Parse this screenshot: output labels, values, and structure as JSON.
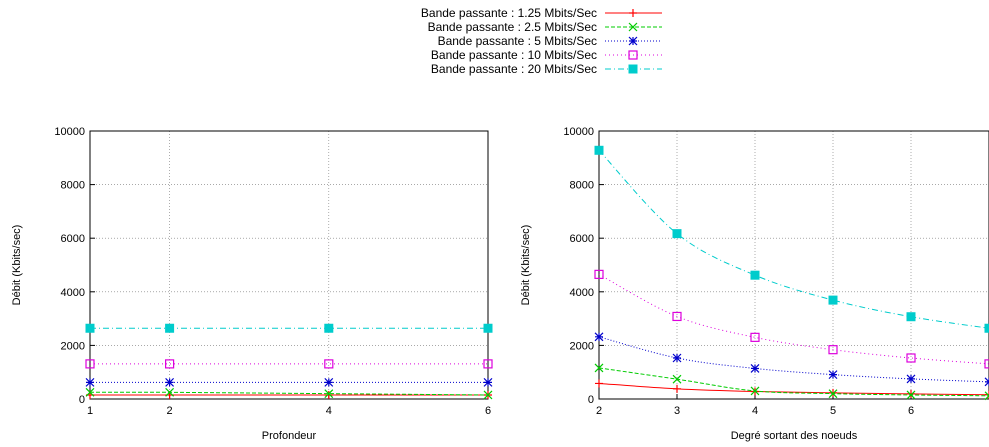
{
  "legend": {
    "placement": "top-center",
    "entries": [
      {
        "label": "Bande passante : 1.25 Mbits/Sec",
        "color": "#ff0000",
        "marker": "plus",
        "dash": ""
      },
      {
        "label": "Bande passante : 2.5 Mbits/Sec",
        "color": "#00cc00",
        "marker": "cross",
        "dash": "4,2"
      },
      {
        "label": "Bande passante : 5 Mbits/Sec",
        "color": "#0000cc",
        "marker": "star",
        "dash": "1,2"
      },
      {
        "label": "Bande passante : 10 Mbits/Sec",
        "color": "#dd00dd",
        "marker": "open-square",
        "dash": "1,3"
      },
      {
        "label": "Bande passante : 20 Mbits/Sec",
        "color": "#00cccc",
        "marker": "filled-square",
        "dash": "6,3,1,3"
      }
    ]
  },
  "chart_data": [
    {
      "type": "line",
      "xlabel": "Profondeur",
      "ylabel": "Débit (Kbits/sec)",
      "xlim": [
        1,
        6
      ],
      "ylim": [
        0,
        10000
      ],
      "xticks": [
        1,
        2,
        4,
        6
      ],
      "yticks": [
        0,
        2000,
        4000,
        6000,
        8000,
        10000
      ],
      "grid": true,
      "x": [
        1,
        2,
        4,
        6
      ],
      "series": [
        {
          "name": "Bande passante : 1.25 Mbits/Sec",
          "values": [
            150,
            150,
            150,
            150
          ]
        },
        {
          "name": "Bande passante : 2.5 Mbits/Sec",
          "values": [
            250,
            250,
            200,
            150
          ]
        },
        {
          "name": "Bande passante : 5 Mbits/Sec",
          "values": [
            620,
            620,
            620,
            620
          ]
        },
        {
          "name": "Bande passante : 10 Mbits/Sec",
          "values": [
            1310,
            1310,
            1310,
            1310
          ]
        },
        {
          "name": "Bande passante : 20 Mbits/Sec",
          "values": [
            2640,
            2640,
            2640,
            2640
          ]
        }
      ]
    },
    {
      "type": "line",
      "xlabel": "Degré sortant des noeuds",
      "ylabel": "Débit (Kbits/sec)",
      "xlim": [
        2,
        7
      ],
      "ylim": [
        0,
        10000
      ],
      "xticks": [
        2,
        3,
        4,
        5,
        6
      ],
      "yticks": [
        0,
        2000,
        4000,
        6000,
        8000,
        10000
      ],
      "grid": true,
      "x": [
        2,
        3,
        4,
        5,
        6,
        7
      ],
      "series": [
        {
          "name": "Bande passante : 1.25 Mbits/Sec",
          "values": [
            580,
            380,
            280,
            230,
            190,
            160
          ]
        },
        {
          "name": "Bande passante : 2.5 Mbits/Sec",
          "values": [
            1160,
            740,
            300,
            200,
            150,
            120
          ]
        },
        {
          "name": "Bande passante : 5 Mbits/Sec",
          "values": [
            2320,
            1530,
            1140,
            910,
            750,
            640
          ]
        },
        {
          "name": "Bande passante : 10 Mbits/Sec",
          "values": [
            4650,
            3080,
            2300,
            1840,
            1530,
            1310
          ]
        },
        {
          "name": "Bande passante : 20 Mbits/Sec",
          "values": [
            9280,
            6170,
            4620,
            3690,
            3070,
            2640
          ]
        }
      ]
    }
  ]
}
